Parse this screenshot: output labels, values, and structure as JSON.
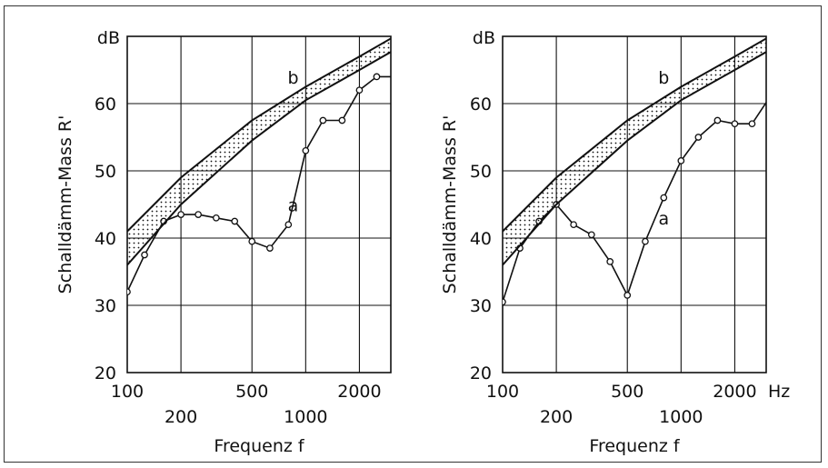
{
  "chart_data": [
    {
      "type": "line",
      "x_scale": "log",
      "xlim": [
        100,
        3000
      ],
      "ylim": [
        20,
        70
      ],
      "grid": true,
      "xlabel": "Frequenz  f",
      "ylabel": "Schalldämm-Mass  R'",
      "y_unit": "dB",
      "x_unit": "",
      "x_ticks_upper": [
        "100",
        "500",
        "2000"
      ],
      "x_ticks_lower": [
        "200",
        "1000"
      ],
      "y_ticks": [
        "20",
        "30",
        "40",
        "50",
        "60"
      ],
      "series": [
        {
          "name": "a",
          "x": [
            100,
            125,
            160,
            200,
            250,
            315,
            400,
            500,
            630,
            800,
            1000,
            1250,
            1600,
            2000,
            2500,
            3150
          ],
          "y": [
            32,
            37.5,
            42.5,
            43.5,
            43.5,
            43,
            42.5,
            39.5,
            38.5,
            42,
            53,
            57.5,
            57.5,
            62,
            64,
            64
          ]
        },
        {
          "name": "b",
          "x": [
            100,
            200,
            500,
            1000,
            2000,
            3150
          ],
          "upper": [
            41,
            49,
            57.5,
            62.5,
            67,
            70
          ],
          "lower": [
            36,
            45,
            54.5,
            60.5,
            65,
            68
          ]
        }
      ],
      "annotations": [
        {
          "text": "a",
          "x": 850,
          "y": 44
        },
        {
          "text": "b",
          "x": 850,
          "y": 63
        }
      ]
    },
    {
      "type": "line",
      "x_scale": "log",
      "xlim": [
        100,
        3000
      ],
      "ylim": [
        20,
        70
      ],
      "grid": true,
      "xlabel": "Frequenz  f",
      "ylabel": "Schalldämm-Mass  R'",
      "y_unit": "dB",
      "x_unit": "Hz",
      "x_ticks_upper": [
        "100",
        "500",
        "2000"
      ],
      "x_ticks_lower": [
        "200",
        "1000"
      ],
      "y_ticks": [
        "20",
        "30",
        "40",
        "50",
        "60"
      ],
      "series": [
        {
          "name": "a",
          "x": [
            100,
            125,
            160,
            200,
            250,
            315,
            400,
            500,
            630,
            800,
            1000,
            1250,
            1600,
            2000,
            2500,
            3150
          ],
          "y": [
            30.5,
            38.5,
            42.5,
            45,
            42,
            40.5,
            36.5,
            31.5,
            39.5,
            46,
            51.5,
            55,
            57.5,
            57,
            57,
            61
          ]
        },
        {
          "name": "b",
          "x": [
            100,
            200,
            500,
            1000,
            2000,
            3150
          ],
          "upper": [
            41,
            49,
            57.5,
            62.5,
            67,
            70
          ],
          "lower": [
            36,
            45,
            54.5,
            60.5,
            65,
            68
          ]
        }
      ],
      "annotations": [
        {
          "text": "a",
          "x": 800,
          "y": 42
        },
        {
          "text": "b",
          "x": 800,
          "y": 63
        }
      ]
    }
  ]
}
